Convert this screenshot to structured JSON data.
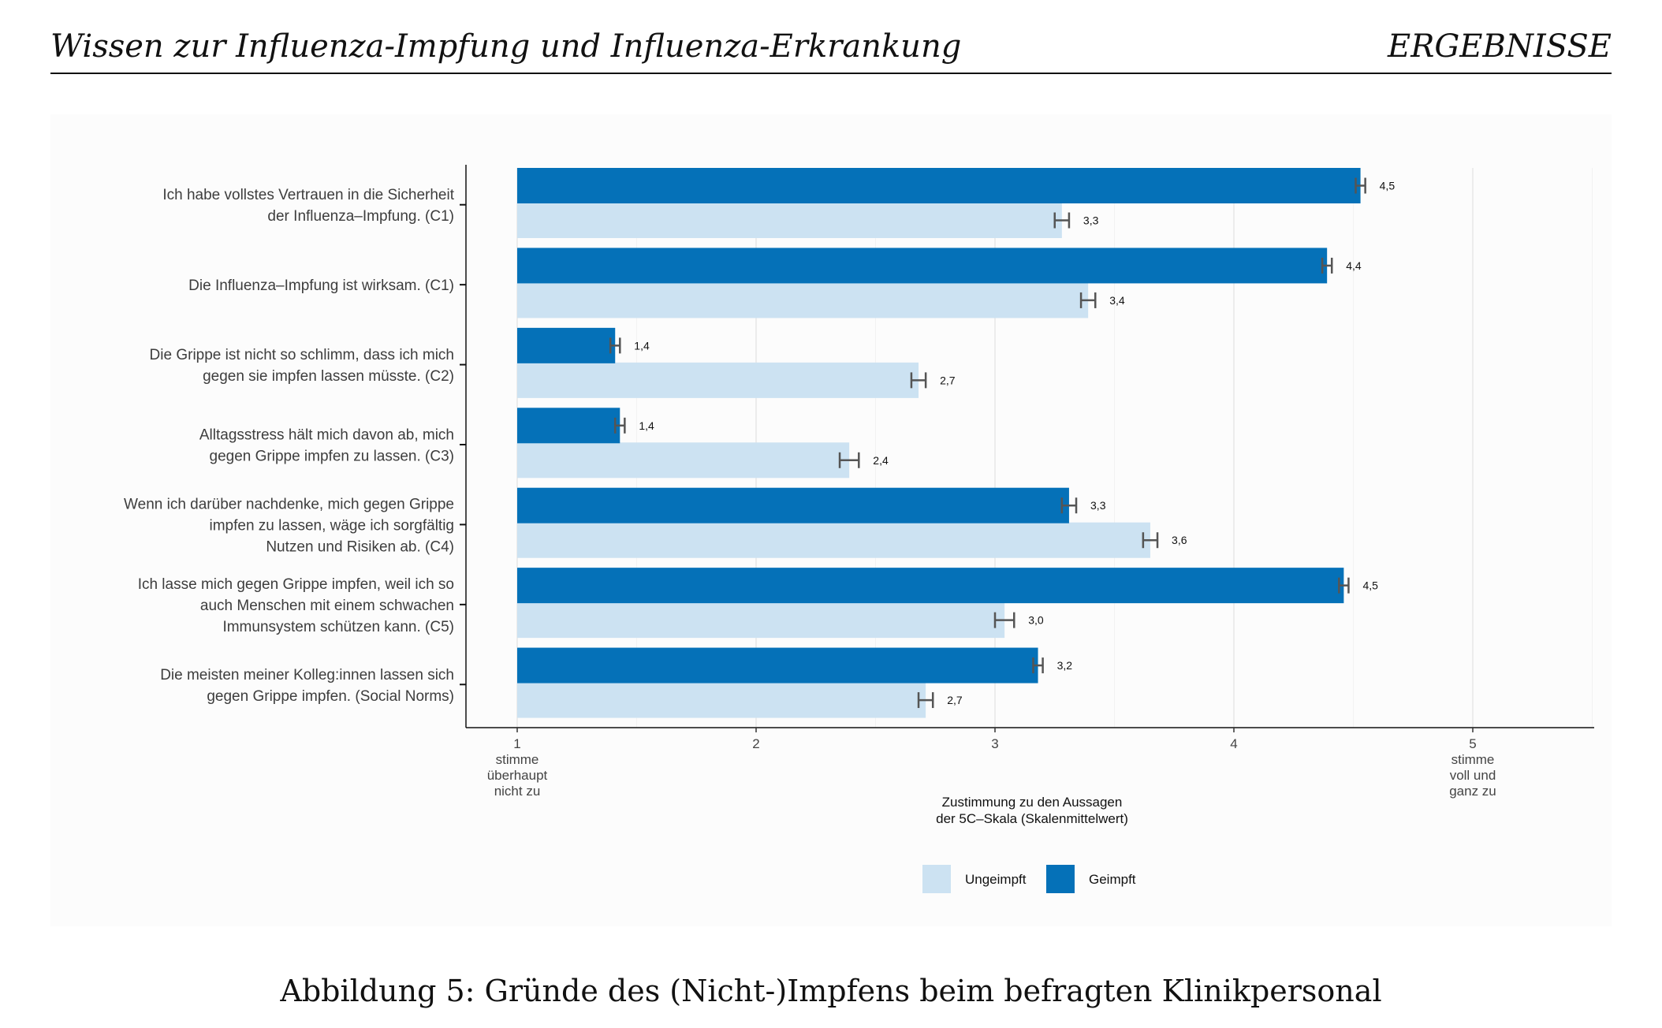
{
  "header": {
    "left_title": "Wissen zur Influenza-Impfung und Influenza-Erkrankung",
    "right_title": "ERGEBNISSE"
  },
  "caption": "Abbildung 5: Gründe des (Nicht-)Impfens beim befragten Klinikpersonal",
  "colors": {
    "geimpft": "#0571b8",
    "ungeimpft": "#cce2f2",
    "errorbar": "#555555"
  },
  "chart_data": {
    "type": "bar",
    "orientation": "horizontal",
    "title": "",
    "xlabel": [
      "Zustimmung zu den Aussagen",
      "der 5C–Skala (Skalenmittelwert)"
    ],
    "xlim": [
      1,
      5.5
    ],
    "x_ticks": [
      {
        "value": 1,
        "lines": [
          "1",
          "stimme",
          "überhaupt",
          "nicht zu"
        ]
      },
      {
        "value": 2,
        "lines": [
          "2"
        ]
      },
      {
        "value": 3,
        "lines": [
          "3"
        ]
      },
      {
        "value": 4,
        "lines": [
          "4"
        ]
      },
      {
        "value": 5,
        "lines": [
          "5",
          "stimme",
          "voll und",
          "ganz zu"
        ]
      }
    ],
    "grid": "vertical",
    "legend_position": "bottom",
    "categories": [
      [
        "Ich habe vollstes Vertrauen in die Sicherheit",
        "der Influenza–Impfung. (C1)"
      ],
      [
        "Die Influenza–Impfung ist wirksam. (C1)"
      ],
      [
        "Die Grippe ist nicht so schlimm, dass ich mich",
        "gegen sie impfen lassen müsste. (C2)"
      ],
      [
        "Alltagsstress hält mich davon ab, mich",
        "gegen Grippe impfen zu lassen. (C3)"
      ],
      [
        "Wenn ich darüber nachdenke, mich gegen Grippe",
        "impfen zu lassen, wäge ich sorgfältig",
        "Nutzen und Risiken ab. (C4)"
      ],
      [
        "Ich lasse mich gegen Grippe impfen, weil ich so",
        "auch Menschen mit einem schwachen",
        "Immunsystem schützen kann. (C5)"
      ],
      [
        "Die meisten meiner Kolleg:innen lassen sich",
        "gegen Grippe impfen. (Social Norms)"
      ]
    ],
    "series": [
      {
        "name": "Geimpft",
        "values": [
          4.53,
          4.39,
          1.41,
          1.43,
          3.31,
          4.46,
          3.18
        ],
        "labels": [
          "4,5",
          "4,4",
          "1,4",
          "1,4",
          "3,3",
          "4,5",
          "3,2"
        ],
        "error": [
          0.02,
          0.02,
          0.02,
          0.02,
          0.03,
          0.02,
          0.02
        ]
      },
      {
        "name": "Ungeimpft",
        "values": [
          3.28,
          3.39,
          2.68,
          2.39,
          3.65,
          3.04,
          2.71
        ],
        "labels": [
          "3,3",
          "3,4",
          "2,7",
          "2,4",
          "3,6",
          "3,0",
          "2,7"
        ],
        "error": [
          0.03,
          0.03,
          0.03,
          0.04,
          0.03,
          0.04,
          0.03
        ]
      }
    ],
    "legend": [
      "Ungeimpft",
      "Geimpft"
    ]
  }
}
